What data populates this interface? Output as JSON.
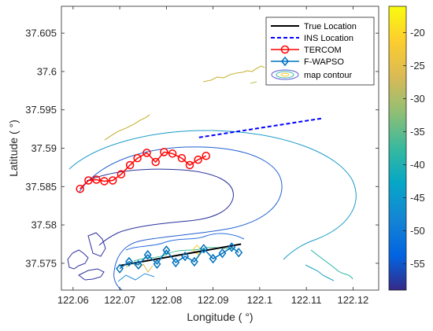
{
  "chart_data": {
    "type": "line",
    "xlabel": "Longitude ( °)",
    "ylabel": "Latitude ( °)",
    "xlim": [
      122.0575,
      122.1255
    ],
    "ylim": [
      37.5715,
      37.6085
    ],
    "xticks": [
      122.06,
      122.07,
      122.08,
      122.09,
      122.1,
      122.11,
      122.12
    ],
    "xtick_labels": [
      "122.06",
      "122.07",
      "122.08",
      "122.09",
      "122.1",
      "122.11",
      "122.12"
    ],
    "yticks": [
      37.575,
      37.58,
      37.585,
      37.59,
      37.595,
      37.6,
      37.605
    ],
    "ytick_labels": [
      "37.575",
      "37.58",
      "37.585",
      "37.59",
      "37.595",
      "37.6",
      "37.605"
    ],
    "legend_position": "top-right",
    "colorbar": {
      "range": [
        -59,
        -16
      ],
      "ticks": [
        -20,
        -25,
        -30,
        -35,
        -40,
        -45,
        -50,
        -55
      ],
      "tick_labels": [
        "-20",
        "-25",
        "-30",
        "-35",
        "-40",
        "-45",
        "-50",
        "-55"
      ]
    },
    "series": [
      {
        "name": "True Location",
        "color": "#000000",
        "style": "solid",
        "x": [
          122.07,
          122.096
        ],
        "y": [
          37.5747,
          37.5775
        ]
      },
      {
        "name": "INS Location",
        "color": "#0000ff",
        "style": "dashed",
        "x": [
          122.087,
          122.1135
        ],
        "y": [
          37.5914,
          37.5939
        ]
      },
      {
        "name": "TERCOM",
        "color": "#ff0000",
        "style": "solid-circle",
        "x": [
          122.0615,
          122.0633,
          122.065,
          122.0667,
          122.0685,
          122.0703,
          122.0722,
          122.0738,
          122.0758,
          122.0777,
          122.0795,
          122.0813,
          122.0833,
          122.085,
          122.0868,
          122.0885
        ],
        "y": [
          37.5847,
          37.5858,
          37.5859,
          37.5857,
          37.5858,
          37.5866,
          37.5878,
          37.5887,
          37.5894,
          37.5882,
          37.5895,
          37.5893,
          37.5887,
          37.5878,
          37.5885,
          37.589
        ]
      },
      {
        "name": "F-WAPSO",
        "color": "#0072bd",
        "style": "solid-diamond",
        "x": [
          122.07,
          122.072,
          122.074,
          122.076,
          122.078,
          122.08,
          122.082,
          122.084,
          122.086,
          122.088,
          122.09,
          122.092,
          122.094,
          122.0955
        ],
        "y": [
          37.5743,
          37.5752,
          37.5748,
          37.5761,
          37.5749,
          37.5767,
          37.5751,
          37.5759,
          37.5752,
          37.5769,
          37.5756,
          37.5763,
          37.5771,
          37.5764
        ]
      },
      {
        "name": "map contour",
        "color": "#8a8ad8",
        "style": "contour"
      }
    ]
  }
}
